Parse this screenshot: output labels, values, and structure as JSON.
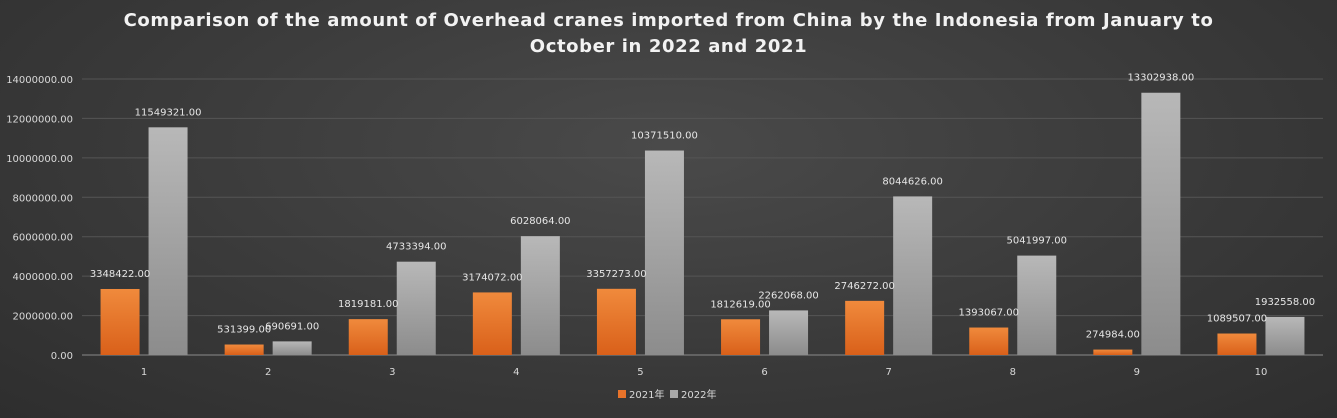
{
  "chart_data": {
    "type": "bar",
    "title_lines": [
      "Comparison of the amount of Overhead cranes imported from China by the Indonesia from January to",
      "October in 2022 and 2021"
    ],
    "categories": [
      "1",
      "2",
      "3",
      "4",
      "5",
      "6",
      "7",
      "8",
      "9",
      "10"
    ],
    "series": [
      {
        "name": "2021年",
        "color": "#e8732a",
        "values": [
          3348422.0,
          531399.0,
          1819181.0,
          3174072.0,
          3357273.0,
          1812619.0,
          2746272.0,
          1393067.0,
          274984.0,
          1089507.0
        ],
        "labels": [
          "3348422.00",
          "531399.00",
          "1819181.00",
          "3174072.00",
          "3357273.00",
          "1812619.00",
          "2746272.00",
          "1393067.00",
          "274984.00",
          "1089507.00"
        ]
      },
      {
        "name": "2022年",
        "color": "#a8a8a8",
        "values": [
          11549321.0,
          690691.0,
          4733394.0,
          6028064.0,
          10371510.0,
          2262068.0,
          8044626.0,
          5041997.0,
          13302938.0,
          1932558.0
        ],
        "labels": [
          "11549321.00",
          "690691.00",
          "4733394.00",
          "6028064.00",
          "10371510.00",
          "2262068.00",
          "8044626.00",
          "5041997.00",
          "13302938.00",
          "1932558.00"
        ]
      }
    ],
    "ylim": [
      0,
      14000000
    ],
    "yticks": [
      0,
      2000000,
      4000000,
      6000000,
      8000000,
      10000000,
      12000000,
      14000000
    ],
    "ytick_labels": [
      "0.00",
      "2000000.00",
      "4000000.00",
      "6000000.00",
      "8000000.00",
      "10000000.00",
      "12000000.00",
      "14000000.00"
    ],
    "grid": true,
    "legend_position": "bottom"
  }
}
